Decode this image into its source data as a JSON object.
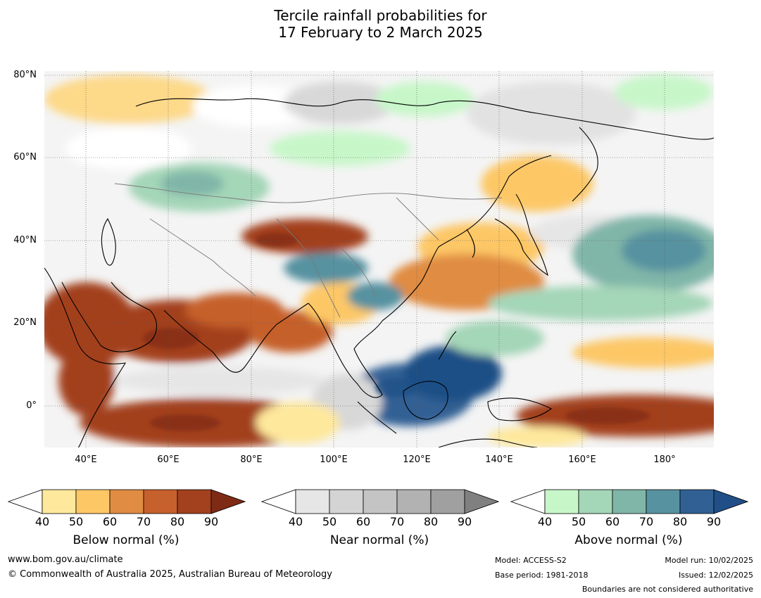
{
  "title": {
    "line1": "Tercile rainfall probabilities for",
    "line2": "17 February to 2 March 2025"
  },
  "axes": {
    "lat_labels": [
      "80°N",
      "60°N",
      "40°N",
      "20°N",
      "0°"
    ],
    "lon_labels": [
      "40°E",
      "60°E",
      "80°E",
      "100°E",
      "120°E",
      "140°E",
      "160°E",
      "180°"
    ]
  },
  "colorbars": [
    {
      "label": "Below normal (%)",
      "ticks": [
        "40",
        "50",
        "60",
        "70",
        "80",
        "90"
      ],
      "colors": [
        "#ffffff",
        "#fee89c",
        "#fdc766",
        "#e08c42",
        "#c6602c",
        "#a3401e",
        "#7f2a14"
      ]
    },
    {
      "label": "Near normal (%)",
      "ticks": [
        "40",
        "50",
        "60",
        "70",
        "80",
        "90"
      ],
      "colors": [
        "#ffffff",
        "#e6e6e6",
        "#d4d4d4",
        "#c4c4c4",
        "#b2b2b2",
        "#a0a0a0",
        "#808080"
      ]
    },
    {
      "label": "Above normal (%)",
      "ticks": [
        "40",
        "50",
        "60",
        "70",
        "80",
        "90"
      ],
      "colors": [
        "#ffffff",
        "#c7f7c9",
        "#a4d6b8",
        "#80b6a8",
        "#5792a0",
        "#316094",
        "#1f4f86"
      ]
    }
  ],
  "footer": {
    "website": "www.bom.gov.au/climate",
    "copyright": "© Commonwealth of Australia 2025, Australian Bureau of Meteorology",
    "model": "Model: ACCESS-S2",
    "base_period": "Base period: 1981-2018",
    "model_run": "Model run: 10/02/2025",
    "issued": "Issued: 12/02/2025",
    "disclaimer": "Boundaries are not considered authoritative"
  }
}
